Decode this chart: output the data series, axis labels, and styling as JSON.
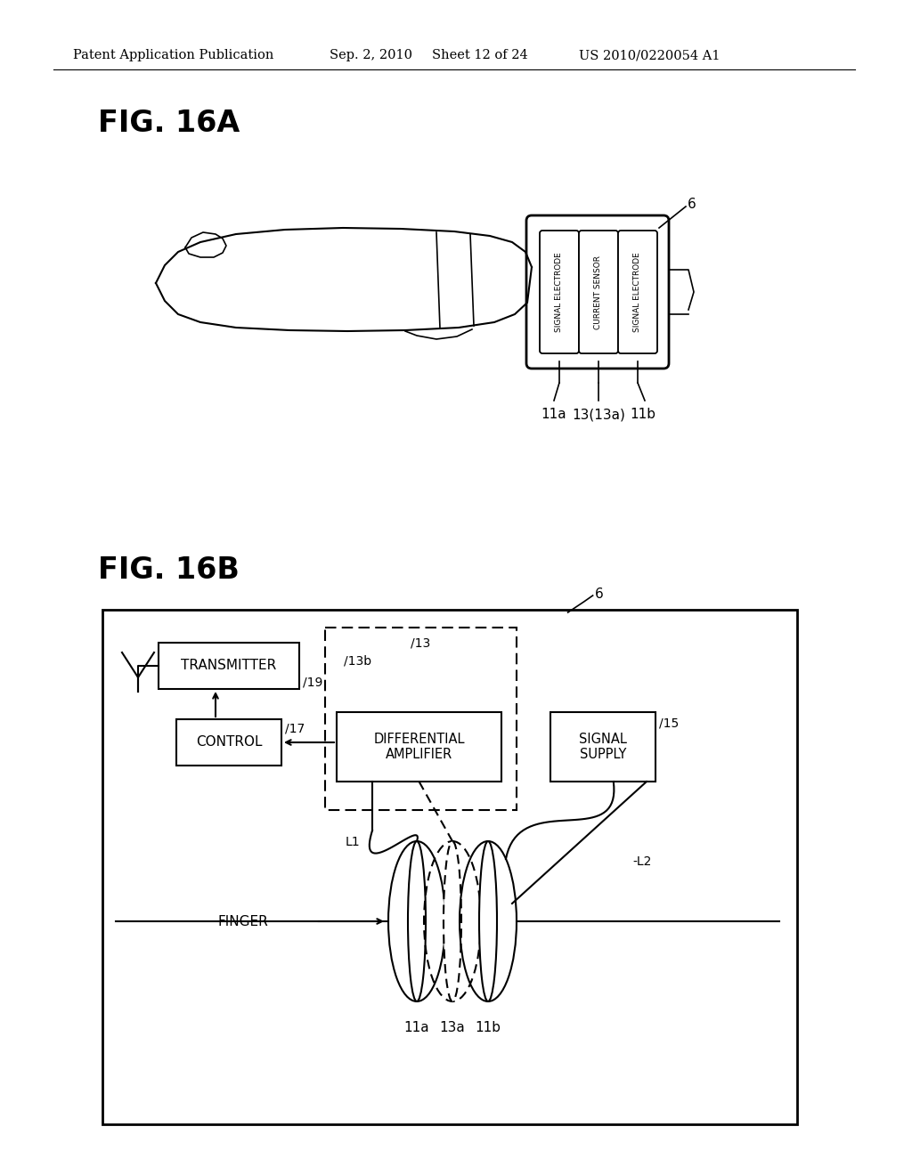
{
  "bg_color": "#ffffff",
  "header_text": "Patent Application Publication",
  "header_date": "Sep. 2, 2010",
  "header_sheet": "Sheet 12 of 24",
  "header_patent": "US 2010/0220054 A1",
  "fig_title_a": "FIG. 16A",
  "fig_title_b": "FIG. 16B",
  "label_signal_electrode": "SIGNAL ELECTRODE",
  "label_current_sensor": "CURRENT SENSOR",
  "label_transmitter": "TRANSMITTER",
  "label_control": "CONTROL",
  "label_diff_amp": "DIFFERENTIAL\nAMPLIFIER",
  "label_signal_supply": "SIGNAL\nSUPPLY",
  "label_finger": "FINGER",
  "line_color": "#000000"
}
